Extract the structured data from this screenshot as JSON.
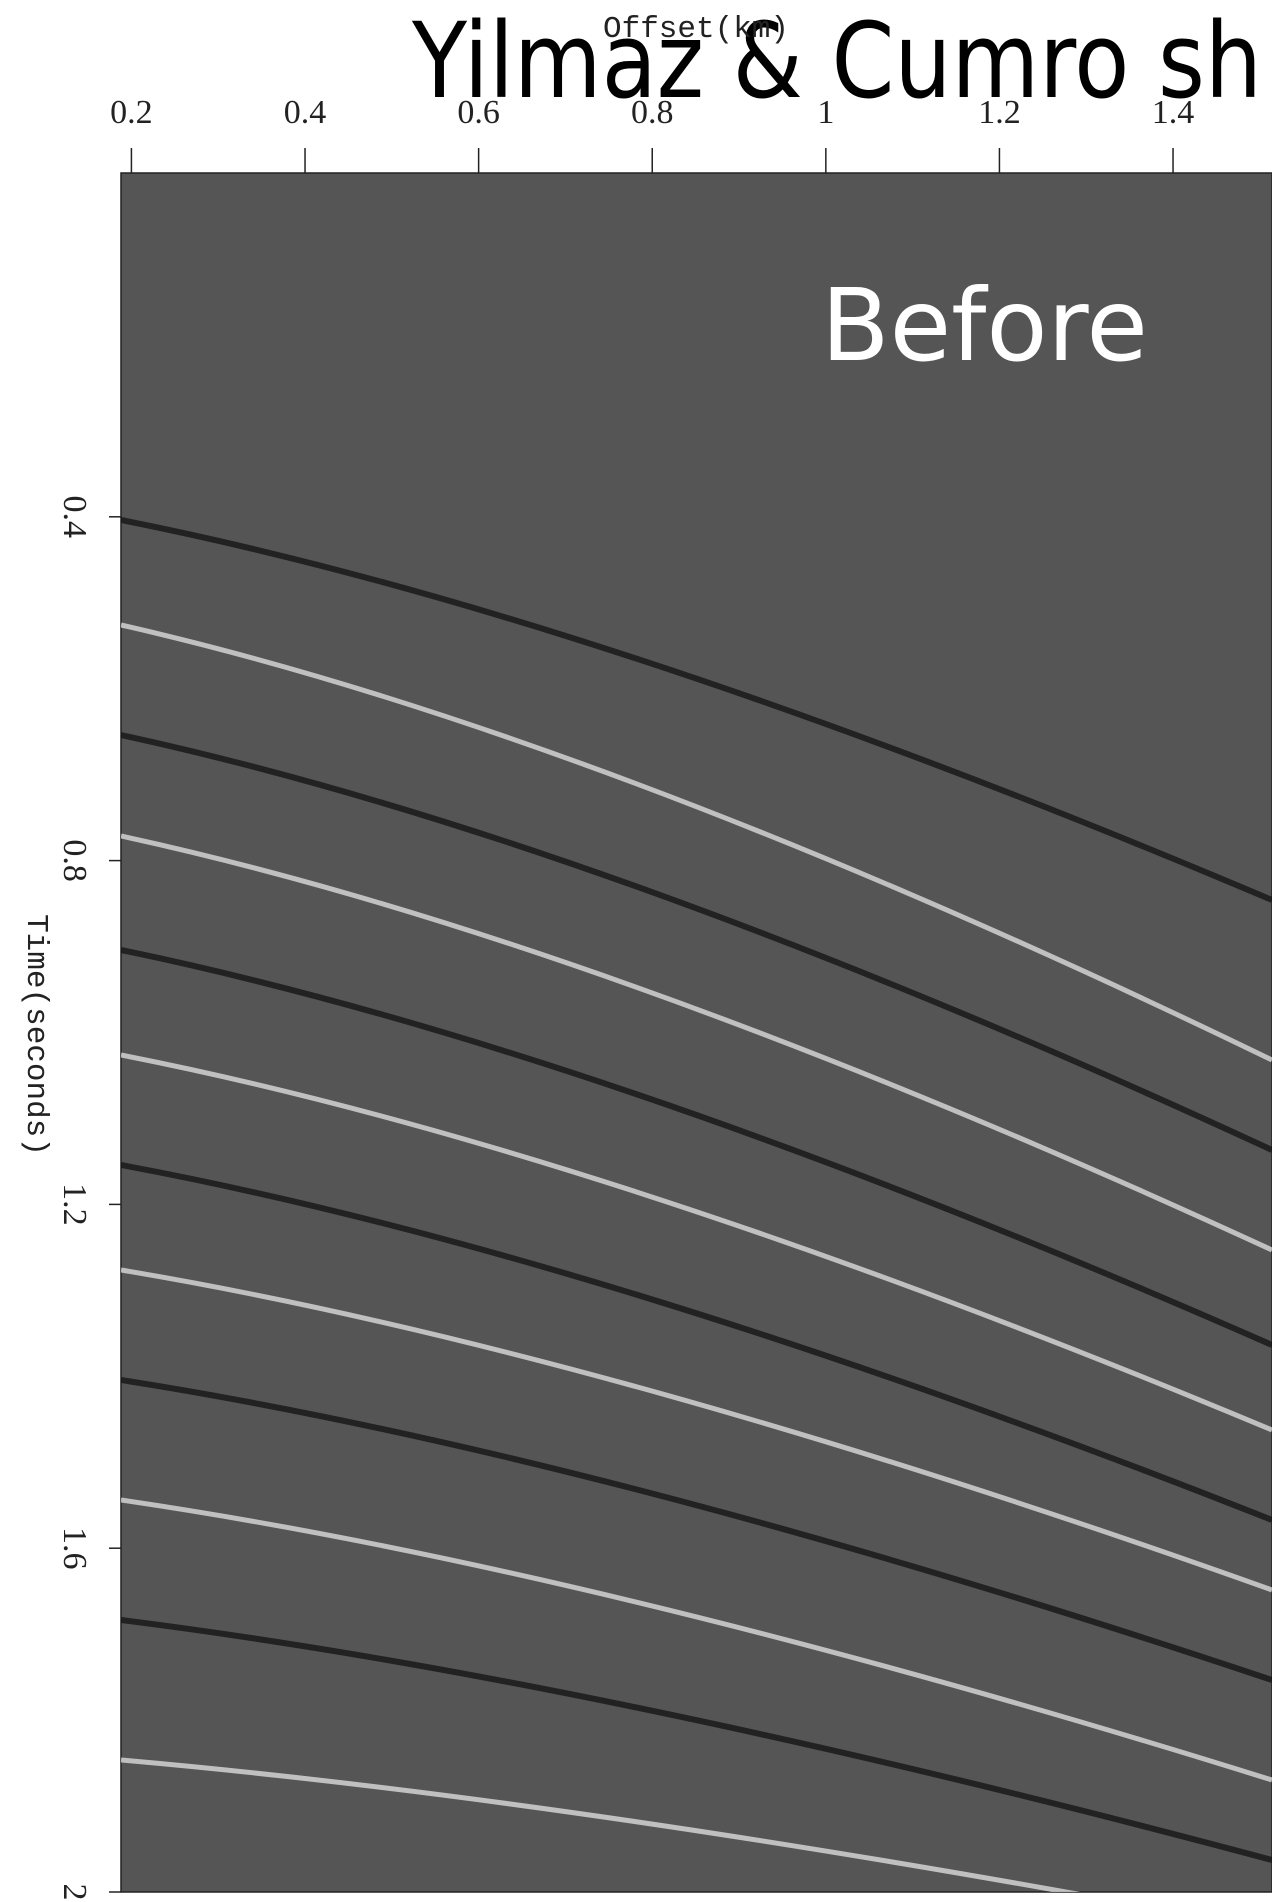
{
  "chart_data": {
    "type": "seismic",
    "title": "Yilmaz & Cumro sh",
    "annotation": "Before",
    "x_label": "Offset(km)",
    "y_label": "Time(seconds)",
    "xlim": [
      0.188,
      1.514
    ],
    "xticks": [
      0.2,
      0.4,
      0.6,
      0.8,
      1,
      1.2,
      1.4
    ],
    "x_axis_position": "top",
    "ylim": [
      0,
      2
    ],
    "yticks": [
      0.4,
      0.8,
      1.2,
      1.6,
      2
    ],
    "y_inverted": true,
    "background_color": "#555555"
  }
}
